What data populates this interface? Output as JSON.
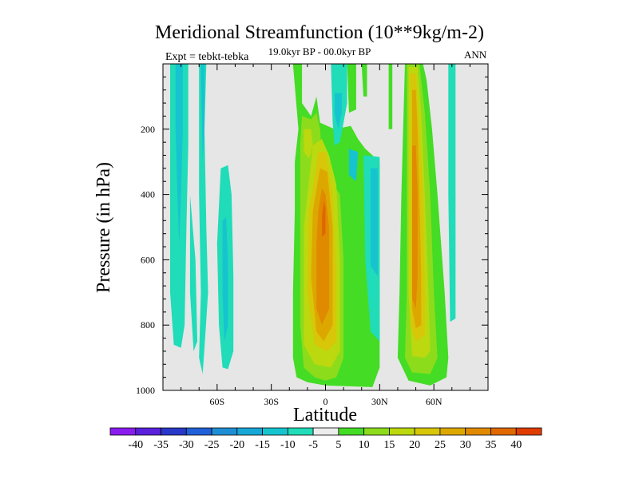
{
  "chart_data": {
    "type": "heatmap",
    "subtype": "filled-contour",
    "title": "Meridional Streamfunction (10**9kg/m-2)",
    "subtitle": "19.0kyr BP - 00.0kyr BP",
    "left_label": "Expt = tebkt-tebka",
    "right_label": "ANN",
    "xlabel": "Latitude",
    "ylabel": "Pressure (in hPa)",
    "xlim": [
      -90,
      90
    ],
    "ylim": [
      1000,
      0
    ],
    "x_ticks": [
      {
        "value": -60,
        "label": "60S"
      },
      {
        "value": -30,
        "label": "30S"
      },
      {
        "value": 0,
        "label": "0"
      },
      {
        "value": 30,
        "label": "30N"
      },
      {
        "value": 60,
        "label": "60N"
      }
    ],
    "y_ticks": [
      {
        "value": 200,
        "label": "200"
      },
      {
        "value": 400,
        "label": "400"
      },
      {
        "value": 600,
        "label": "600"
      },
      {
        "value": 800,
        "label": "800"
      },
      {
        "value": 1000,
        "label": "1000"
      }
    ],
    "background_color": "#e6e6e6",
    "colorbar": {
      "levels": [
        "-40",
        "-35",
        "-30",
        "-25",
        "-20",
        "-15",
        "-10",
        "-5",
        "5",
        "10",
        "15",
        "20",
        "25",
        "30",
        "35",
        "40"
      ],
      "colors": [
        "#8a1cf0",
        "#5a20dc",
        "#2838c8",
        "#2060d8",
        "#1e8ed4",
        "#18a8d8",
        "#16c4d0",
        "#20dcb8",
        "#ececec",
        "#44dc24",
        "#8cdc1c",
        "#bcd80e",
        "#d8c608",
        "#dca800",
        "#e08a00",
        "#e06800",
        "#e03c00"
      ]
    },
    "regions": [
      {
        "level": -5,
        "polygon": [
          [
            -86,
            0
          ],
          [
            -76,
            0
          ],
          [
            -76,
            250
          ],
          [
            -77,
            500
          ],
          [
            -78,
            800
          ],
          [
            -80,
            870
          ],
          [
            -84,
            860
          ],
          [
            -86,
            700
          ]
        ]
      },
      {
        "level": -10,
        "polygon": [
          [
            -83,
            0
          ],
          [
            -79,
            0
          ],
          [
            -79,
            200
          ],
          [
            -80,
            400
          ],
          [
            -81,
            550
          ],
          [
            -82,
            400
          ],
          [
            -83,
            200
          ]
        ]
      },
      {
        "level": -5,
        "polygon": [
          [
            -75,
            400
          ],
          [
            -72,
            600
          ],
          [
            -71,
            850
          ],
          [
            -73,
            880
          ],
          [
            -75,
            700
          ]
        ]
      },
      {
        "level": -5,
        "polygon": [
          [
            -70,
            0
          ],
          [
            -66,
            0
          ],
          [
            -67,
            200
          ],
          [
            -66,
            500
          ],
          [
            -65,
            700
          ],
          [
            -67,
            870
          ],
          [
            -68,
            950
          ],
          [
            -70,
            900
          ],
          [
            -69,
            700
          ],
          [
            -70,
            400
          ]
        ]
      },
      {
        "level": -10,
        "polygon": [
          [
            -69,
            0
          ],
          [
            -67,
            0
          ],
          [
            -67,
            200
          ],
          [
            -68,
            300
          ]
        ]
      },
      {
        "level": -5,
        "polygon": [
          [
            -58,
            320
          ],
          [
            -54,
            310
          ],
          [
            -52,
            400
          ],
          [
            -51,
            650
          ],
          [
            -51,
            880
          ],
          [
            -54,
            935
          ],
          [
            -57,
            930
          ],
          [
            -59,
            800
          ],
          [
            -60,
            550
          ]
        ]
      },
      {
        "level": -10,
        "polygon": [
          [
            -57,
            480
          ],
          [
            -55,
            470
          ],
          [
            -54,
            600
          ],
          [
            -54,
            800
          ],
          [
            -56,
            850
          ],
          [
            -57,
            700
          ]
        ]
      },
      {
        "level": 5,
        "polygon": [
          [
            -18,
            0
          ],
          [
            -13,
            0
          ],
          [
            -13,
            120
          ],
          [
            -8,
            160
          ],
          [
            -5,
            100
          ],
          [
            -3,
            180
          ],
          [
            5,
            200
          ],
          [
            14,
            190
          ],
          [
            18,
            230
          ],
          [
            22,
            260
          ],
          [
            26,
            280
          ],
          [
            30,
            300
          ],
          [
            30,
            930
          ],
          [
            26,
            990
          ],
          [
            0,
            985
          ],
          [
            -10,
            975
          ],
          [
            -16,
            960
          ],
          [
            -18,
            900
          ],
          [
            -18,
            700
          ],
          [
            -17,
            450
          ],
          [
            -17,
            300
          ],
          [
            -15,
            200
          ]
        ]
      },
      {
        "level": -5,
        "polygon": [
          [
            3,
            0
          ],
          [
            12,
            0
          ],
          [
            12,
            120
          ],
          [
            8,
            240
          ],
          [
            5,
            250
          ],
          [
            4,
            180
          ]
        ]
      },
      {
        "level": -10,
        "polygon": [
          [
            5,
            90
          ],
          [
            9,
            90
          ],
          [
            9,
            150
          ],
          [
            7,
            200
          ],
          [
            5,
            150
          ]
        ]
      },
      {
        "level": -5,
        "polygon": [
          [
            21,
            280
          ],
          [
            30,
            285
          ],
          [
            30,
            850
          ],
          [
            25,
            820
          ],
          [
            22,
            600
          ]
        ]
      },
      {
        "level": -10,
        "polygon": [
          [
            25,
            320
          ],
          [
            29,
            320
          ],
          [
            29,
            650
          ],
          [
            25,
            620
          ]
        ]
      },
      {
        "level": -10,
        "polygon": [
          [
            13,
            260
          ],
          [
            18,
            270
          ],
          [
            17,
            360
          ],
          [
            13,
            340
          ]
        ]
      },
      {
        "level": 5,
        "polygon": [
          [
            12,
            0
          ],
          [
            17,
            0
          ],
          [
            17,
            140
          ],
          [
            13,
            150
          ]
        ]
      },
      {
        "level": 5,
        "polygon": [
          [
            20,
            0
          ],
          [
            23,
            0
          ],
          [
            23,
            100
          ],
          [
            21,
            100
          ]
        ]
      },
      {
        "level": 5,
        "polygon": [
          [
            44,
            0
          ],
          [
            54,
            0
          ],
          [
            56,
            50
          ],
          [
            59,
            200
          ],
          [
            62,
            400
          ],
          [
            66,
            700
          ],
          [
            68,
            900
          ],
          [
            67,
            960
          ],
          [
            58,
            985
          ],
          [
            46,
            970
          ],
          [
            40,
            900
          ],
          [
            41,
            700
          ],
          [
            42,
            400
          ],
          [
            43,
            200
          ]
        ]
      },
      {
        "level": 5,
        "polygon": [
          [
            35,
            0
          ],
          [
            37,
            0
          ],
          [
            37,
            200
          ],
          [
            35,
            200
          ]
        ]
      },
      {
        "level": -5,
        "polygon": [
          [
            68,
            0
          ],
          [
            72,
            0
          ],
          [
            72,
            780
          ],
          [
            69,
            790
          ],
          [
            68,
            400
          ]
        ]
      },
      {
        "level": 10,
        "polygon": [
          [
            -13,
            160
          ],
          [
            -8,
            170
          ],
          [
            -5,
            150
          ],
          [
            -3,
            200
          ],
          [
            -1,
            350
          ],
          [
            2,
            350
          ],
          [
            8,
            400
          ],
          [
            10,
            600
          ],
          [
            10,
            900
          ],
          [
            6,
            960
          ],
          [
            0,
            970
          ],
          [
            -6,
            960
          ],
          [
            -12,
            930
          ],
          [
            -14,
            800
          ],
          [
            -14,
            400
          ],
          [
            -14,
            250
          ]
        ]
      },
      {
        "level": 15,
        "polygon": [
          [
            -12,
            200
          ],
          [
            -8,
            200
          ],
          [
            -7,
            250
          ],
          [
            -9,
            290
          ],
          [
            -12,
            270
          ]
        ]
      },
      {
        "level": 15,
        "polygon": [
          [
            -7,
            250
          ],
          [
            -2,
            230
          ],
          [
            2,
            280
          ],
          [
            6,
            370
          ],
          [
            8,
            600
          ],
          [
            8,
            880
          ],
          [
            3,
            930
          ],
          [
            -6,
            920
          ],
          [
            -12,
            860
          ],
          [
            -12,
            500
          ],
          [
            -9,
            350
          ]
        ]
      },
      {
        "level": 20,
        "polygon": [
          [
            -4,
            270
          ],
          [
            0,
            270
          ],
          [
            4,
            400
          ],
          [
            6,
            650
          ],
          [
            6,
            850
          ],
          [
            1,
            880
          ],
          [
            -6,
            860
          ],
          [
            -10,
            700
          ],
          [
            -9,
            450
          ],
          [
            -6,
            350
          ]
        ]
      },
      {
        "level": 25,
        "polygon": [
          [
            -3,
            320
          ],
          [
            1,
            330
          ],
          [
            4,
            500
          ],
          [
            4,
            800
          ],
          [
            -1,
            850
          ],
          [
            -5,
            820
          ],
          [
            -8,
            650
          ],
          [
            -7,
            450
          ]
        ]
      },
      {
        "level": 30,
        "polygon": [
          [
            -2,
            380
          ],
          [
            0,
            400
          ],
          [
            2,
            500
          ],
          [
            2,
            750
          ],
          [
            -2,
            800
          ],
          [
            -5,
            750
          ],
          [
            -5,
            550
          ],
          [
            -4,
            450
          ]
        ]
      },
      {
        "level": 35,
        "polygon": [
          [
            -1,
            420
          ],
          [
            0,
            440
          ],
          [
            0,
            520
          ],
          [
            -2,
            530
          ],
          [
            -2,
            470
          ]
        ]
      },
      {
        "level": 10,
        "polygon": [
          [
            45,
            0
          ],
          [
            52,
            0
          ],
          [
            55,
            150
          ],
          [
            58,
            400
          ],
          [
            60,
            700
          ],
          [
            62,
            900
          ],
          [
            58,
            950
          ],
          [
            48,
            945
          ],
          [
            44,
            900
          ],
          [
            45,
            700
          ],
          [
            45,
            400
          ],
          [
            45,
            200
          ]
        ]
      },
      {
        "level": 15,
        "polygon": [
          [
            46,
            10
          ],
          [
            51,
            10
          ],
          [
            53,
            150
          ],
          [
            55,
            400
          ],
          [
            57,
            700
          ],
          [
            58,
            880
          ],
          [
            55,
            900
          ],
          [
            48,
            895
          ],
          [
            46,
            700
          ],
          [
            46,
            300
          ]
        ]
      },
      {
        "level": 20,
        "polygon": [
          [
            47,
            30
          ],
          [
            50,
            30
          ],
          [
            52,
            200
          ],
          [
            54,
            400
          ],
          [
            55,
            700
          ],
          [
            55,
            830
          ],
          [
            50,
            850
          ],
          [
            47,
            800
          ],
          [
            47,
            500
          ],
          [
            47,
            250
          ]
        ]
      },
      {
        "level": 25,
        "polygon": [
          [
            48,
            80
          ],
          [
            50,
            80
          ],
          [
            51,
            200
          ],
          [
            52,
            400
          ],
          [
            53,
            650
          ],
          [
            53,
            800
          ],
          [
            50,
            810
          ],
          [
            48,
            750
          ],
          [
            48,
            400
          ]
        ]
      },
      {
        "level": 30,
        "polygon": [
          [
            48,
            250
          ],
          [
            50,
            250
          ],
          [
            51,
            400
          ],
          [
            51,
            650
          ],
          [
            50,
            750
          ],
          [
            48,
            720
          ],
          [
            48,
            500
          ]
        ]
      }
    ]
  }
}
